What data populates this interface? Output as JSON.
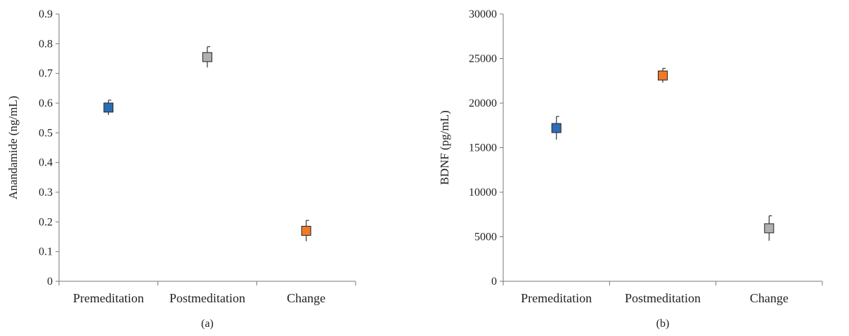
{
  "chart_data": [
    {
      "type": "scatter",
      "panel_label": "(a)",
      "ylabel": "Anandamide (ng/mL)",
      "ylim": [
        0,
        0.9
      ],
      "yticks": [
        "0",
        "0.1",
        "0.2",
        "0.3",
        "0.4",
        "0.5",
        "0.6",
        "0.7",
        "0.8",
        "0.9"
      ],
      "categories": [
        "Premeditation",
        "Postmeditation",
        "Change"
      ],
      "values": [
        0.585,
        0.755,
        0.17
      ],
      "errors": [
        0.025,
        0.035,
        0.035
      ],
      "colors": [
        "#2e6db4",
        "#b0b0b0",
        "#f07a2a"
      ],
      "grid": false
    },
    {
      "type": "scatter",
      "panel_label": "(b)",
      "ylabel": "BDNF (pg/mL)",
      "ylim": [
        0,
        30000
      ],
      "yticks": [
        "0",
        "5000",
        "10000",
        "15000",
        "20000",
        "25000",
        "30000"
      ],
      "categories": [
        "Premeditation",
        "Postmeditation",
        "Change"
      ],
      "values": [
        17200,
        23100,
        5950
      ],
      "errors": [
        1300,
        800,
        1400
      ],
      "colors": [
        "#2e6db4",
        "#f07a2a",
        "#b0b0b0"
      ],
      "grid": false
    }
  ]
}
